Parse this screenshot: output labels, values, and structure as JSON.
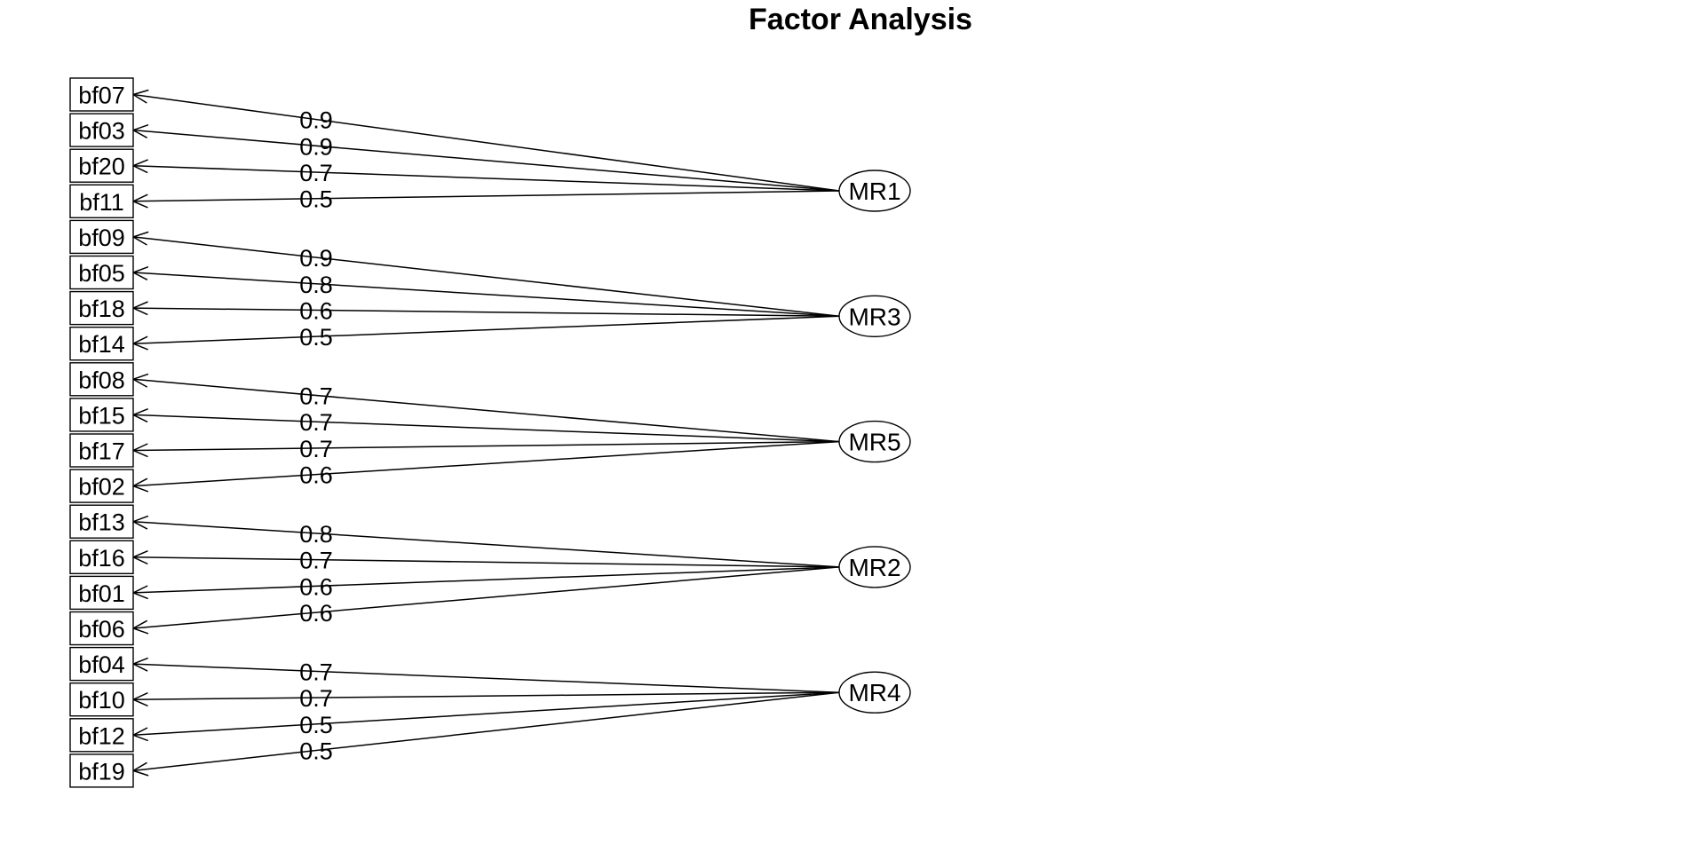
{
  "title": "Factor Analysis",
  "factors": [
    {
      "name": "MR1",
      "loadings": [
        {
          "variable": "bf07",
          "value": "0.9"
        },
        {
          "variable": "bf03",
          "value": "0.9"
        },
        {
          "variable": "bf20",
          "value": "0.7"
        },
        {
          "variable": "bf11",
          "value": "0.5"
        }
      ]
    },
    {
      "name": "MR3",
      "loadings": [
        {
          "variable": "bf09",
          "value": "0.9"
        },
        {
          "variable": "bf05",
          "value": "0.8"
        },
        {
          "variable": "bf18",
          "value": "0.6"
        },
        {
          "variable": "bf14",
          "value": "0.5"
        }
      ]
    },
    {
      "name": "MR5",
      "loadings": [
        {
          "variable": "bf08",
          "value": "0.7"
        },
        {
          "variable": "bf15",
          "value": "0.7"
        },
        {
          "variable": "bf17",
          "value": "0.7"
        },
        {
          "variable": "bf02",
          "value": "0.6"
        }
      ]
    },
    {
      "name": "MR2",
      "loadings": [
        {
          "variable": "bf13",
          "value": "0.8"
        },
        {
          "variable": "bf16",
          "value": "0.7"
        },
        {
          "variable": "bf01",
          "value": "0.6"
        },
        {
          "variable": "bf06",
          "value": "0.6"
        }
      ]
    },
    {
      "name": "MR4",
      "loadings": [
        {
          "variable": "bf04",
          "value": "0.7"
        },
        {
          "variable": "bf10",
          "value": "0.7"
        },
        {
          "variable": "bf12",
          "value": "0.5"
        },
        {
          "variable": "bf19",
          "value": "0.5"
        }
      ]
    }
  ]
}
